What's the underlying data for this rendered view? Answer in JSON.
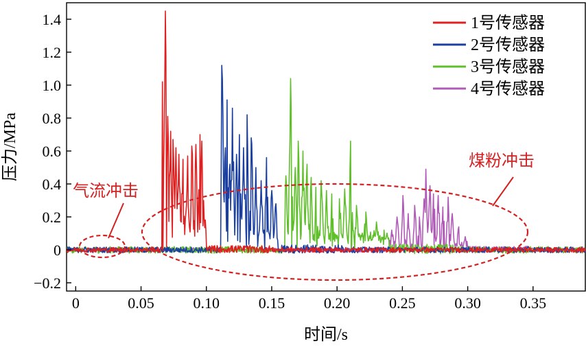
{
  "chart_data": {
    "type": "line",
    "title": "",
    "xlabel": "时间/s",
    "ylabel": "压力/MPa",
    "xlim": [
      -0.007,
      0.39
    ],
    "ylim": [
      -0.25,
      1.5
    ],
    "xticks": [
      0,
      0.05,
      0.1,
      0.15,
      0.2,
      0.25,
      0.3,
      0.35
    ],
    "xtick_labels": [
      "0",
      "0.05",
      "0.10",
      "0.15",
      "0.20",
      "0.25",
      "0.30",
      "0.35"
    ],
    "yticks": [
      -0.2,
      0,
      0.2,
      0.4,
      0.6,
      0.8,
      1.0,
      1.2,
      1.4
    ],
    "ytick_labels": [
      "−0.2",
      "0",
      "0.2",
      "0.4",
      "0.6",
      "0.8",
      "1.0",
      "1.2",
      "1.4"
    ],
    "grid": false,
    "legend_position": "top-right",
    "series": [
      {
        "name": "1号传感器",
        "color": "#e02020",
        "start": 0.067,
        "end": 0.1,
        "peaks": [
          [
            0.0665,
            1.02
          ],
          [
            0.0685,
            1.45
          ],
          [
            0.0705,
            0.81
          ],
          [
            0.0725,
            0.72
          ],
          [
            0.0745,
            0.67
          ],
          [
            0.0765,
            0.62
          ],
          [
            0.079,
            0.58
          ],
          [
            0.082,
            0.55
          ],
          [
            0.0855,
            0.57
          ],
          [
            0.089,
            0.63
          ],
          [
            0.092,
            0.64
          ],
          [
            0.095,
            0.7
          ],
          [
            0.0965,
            0.66
          ],
          [
            0.098,
            0.3
          ]
        ],
        "baseline_noise": 0.03,
        "burst_floor": 0.2
      },
      {
        "name": "2号传感器",
        "color": "#1a3fa0",
        "start": 0.111,
        "end": 0.155,
        "peaks": [
          [
            0.112,
            1.12
          ],
          [
            0.1145,
            0.62
          ],
          [
            0.116,
            0.91
          ],
          [
            0.118,
            0.52
          ],
          [
            0.12,
            0.86
          ],
          [
            0.123,
            0.58
          ],
          [
            0.1255,
            0.7
          ],
          [
            0.1285,
            0.62
          ],
          [
            0.131,
            0.82
          ],
          [
            0.1345,
            0.68
          ],
          [
            0.138,
            0.5
          ],
          [
            0.142,
            0.42
          ],
          [
            0.146,
            0.56
          ],
          [
            0.15,
            0.36
          ],
          [
            0.153,
            0.28
          ]
        ],
        "baseline_noise": 0.035,
        "burst_floor": 0.12
      },
      {
        "name": "3号传感器",
        "color": "#5fbf2a",
        "start": 0.16,
        "end": 0.24,
        "peaks": [
          [
            0.161,
            0.45
          ],
          [
            0.1645,
            1.04
          ],
          [
            0.168,
            0.5
          ],
          [
            0.1705,
            0.66
          ],
          [
            0.174,
            0.6
          ],
          [
            0.177,
            0.52
          ],
          [
            0.18,
            0.44
          ],
          [
            0.184,
            0.38
          ],
          [
            0.188,
            0.42
          ],
          [
            0.192,
            0.36
          ],
          [
            0.196,
            0.34
          ],
          [
            0.202,
            0.31
          ],
          [
            0.206,
            0.37
          ],
          [
            0.2105,
            0.66
          ],
          [
            0.215,
            0.27
          ],
          [
            0.222,
            0.23
          ],
          [
            0.23,
            0.17
          ],
          [
            0.236,
            0.12
          ]
        ],
        "baseline_noise": 0.04,
        "burst_floor": 0.1
      },
      {
        "name": "4号传感器",
        "color": "#b05ab8",
        "start": 0.24,
        "end": 0.3,
        "peaks": [
          [
            0.242,
            0.12
          ],
          [
            0.246,
            0.2
          ],
          [
            0.2505,
            0.33
          ],
          [
            0.2545,
            0.22
          ],
          [
            0.2595,
            0.27
          ],
          [
            0.263,
            0.2
          ],
          [
            0.2665,
            0.31
          ],
          [
            0.268,
            0.49
          ],
          [
            0.271,
            0.39
          ],
          [
            0.274,
            0.34
          ],
          [
            0.2775,
            0.33
          ],
          [
            0.281,
            0.26
          ],
          [
            0.285,
            0.32
          ],
          [
            0.288,
            0.22
          ],
          [
            0.293,
            0.14
          ],
          [
            0.298,
            0.08
          ]
        ],
        "baseline_noise": 0.025,
        "burst_floor": 0.04
      }
    ],
    "annotations": [
      {
        "text": "气流冲击",
        "near": [
          0.02,
          0.04
        ]
      },
      {
        "text": "煤粉冲击",
        "near": [
          0.2,
          0.1
        ]
      }
    ]
  }
}
